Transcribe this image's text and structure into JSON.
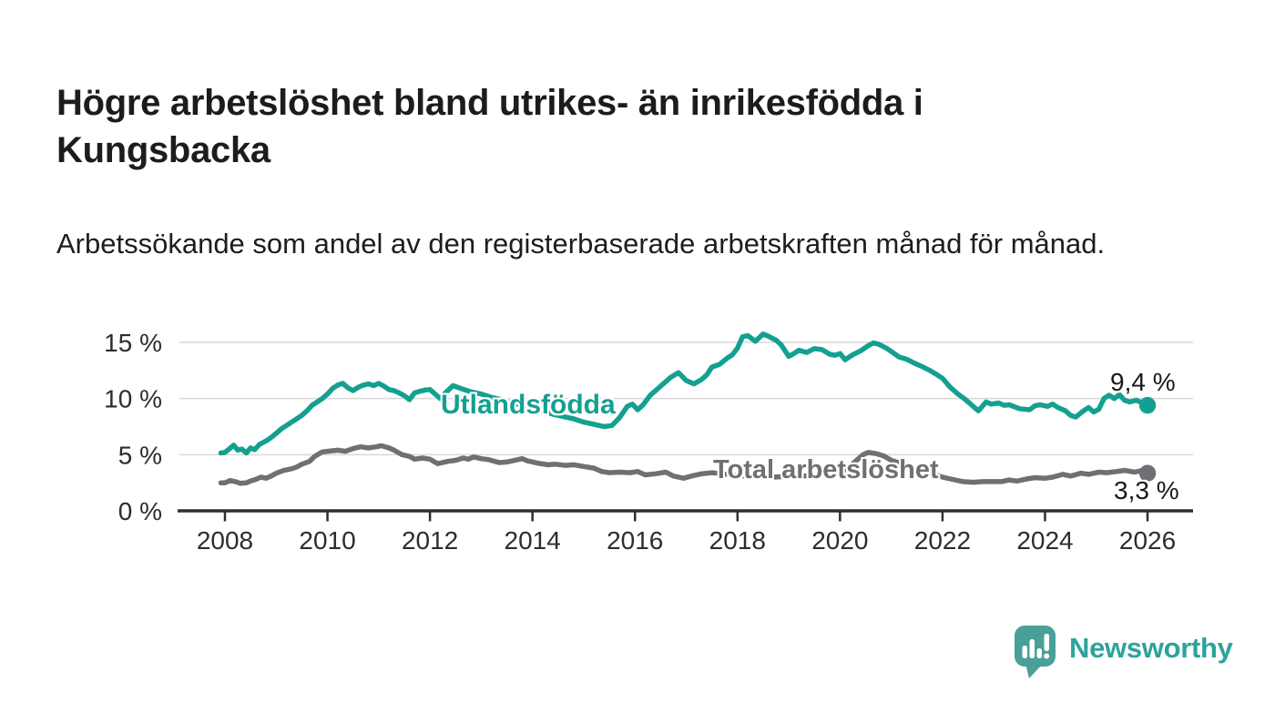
{
  "page": {
    "title": "Högre arbetslöshet bland utrikes- än inrikesfödda i Kungsbacka",
    "subtitle": "Arbetssökande som andel av den registerbaserade arbetskraften månad för månad."
  },
  "colors": {
    "accent_teal": "#14a091",
    "series_gray": "#6f6f74",
    "axis": "#2f2f2f",
    "grid": "#d8d8d8",
    "tick_text": "#2d2d2d",
    "text": "#1c1c1e",
    "brand_teal": "#2da39a",
    "logo_bubble": "#4a9f99"
  },
  "chart_data": {
    "type": "line",
    "title": "Högre arbetslöshet bland utrikes- än inrikesfödda i Kungsbacka",
    "subtitle": "Arbetssökande som andel av den registerbaserade arbetskraften månad för månad.",
    "grid": true,
    "x_axis": {
      "tick_values": [
        2008,
        2010,
        2012,
        2014,
        2016,
        2018,
        2020,
        2022,
        2024,
        2026
      ],
      "tick_labels": [
        "2008",
        "2010",
        "2012",
        "2014",
        "2016",
        "2018",
        "2020",
        "2022",
        "2024",
        "2026"
      ],
      "range": [
        2007.9,
        2026.9
      ]
    },
    "y_axis": {
      "unit": "%",
      "tick_values": [
        0,
        5,
        10,
        15
      ],
      "tick_labels": [
        "0 %",
        "5 %",
        "10 %",
        "15 %"
      ],
      "range": [
        0,
        16.3
      ]
    },
    "series": [
      {
        "name": "Utlandsfödda",
        "color": "#14a091",
        "end_label": "9,4 %",
        "end_value": 9.4,
        "points": [
          [
            2007.92,
            5.15
          ],
          [
            2008.0,
            5.2
          ],
          [
            2008.08,
            5.5
          ],
          [
            2008.17,
            5.85
          ],
          [
            2008.25,
            5.4
          ],
          [
            2008.33,
            5.5
          ],
          [
            2008.42,
            5.15
          ],
          [
            2008.5,
            5.6
          ],
          [
            2008.58,
            5.45
          ],
          [
            2008.67,
            5.9
          ],
          [
            2008.75,
            6.1
          ],
          [
            2008.83,
            6.3
          ],
          [
            2008.92,
            6.6
          ],
          [
            2009.0,
            6.9
          ],
          [
            2009.1,
            7.3
          ],
          [
            2009.2,
            7.6
          ],
          [
            2009.3,
            7.9
          ],
          [
            2009.4,
            8.2
          ],
          [
            2009.5,
            8.5
          ],
          [
            2009.6,
            8.9
          ],
          [
            2009.7,
            9.4
          ],
          [
            2009.8,
            9.7
          ],
          [
            2009.9,
            10.0
          ],
          [
            2010.0,
            10.4
          ],
          [
            2010.1,
            10.9
          ],
          [
            2010.2,
            11.2
          ],
          [
            2010.3,
            11.35
          ],
          [
            2010.4,
            10.95
          ],
          [
            2010.5,
            10.7
          ],
          [
            2010.6,
            11.0
          ],
          [
            2010.7,
            11.2
          ],
          [
            2010.8,
            11.3
          ],
          [
            2010.9,
            11.15
          ],
          [
            2011.0,
            11.35
          ],
          [
            2011.1,
            11.1
          ],
          [
            2011.2,
            10.8
          ],
          [
            2011.3,
            10.7
          ],
          [
            2011.4,
            10.5
          ],
          [
            2011.5,
            10.25
          ],
          [
            2011.6,
            9.9
          ],
          [
            2011.7,
            10.5
          ],
          [
            2011.8,
            10.65
          ],
          [
            2011.9,
            10.75
          ],
          [
            2012.0,
            10.8
          ],
          [
            2012.1,
            10.4
          ],
          [
            2012.2,
            10.0
          ],
          [
            2012.3,
            10.5
          ],
          [
            2012.45,
            11.15
          ],
          [
            2012.6,
            10.9
          ],
          [
            2012.8,
            10.6
          ],
          [
            2013.0,
            10.4
          ],
          [
            2013.2,
            10.1
          ],
          [
            2013.4,
            9.9
          ],
          [
            2013.6,
            9.6
          ],
          [
            2013.8,
            9.4
          ],
          [
            2014.0,
            9.1
          ],
          [
            2014.2,
            8.9
          ],
          [
            2014.4,
            8.6
          ],
          [
            2014.6,
            8.4
          ],
          [
            2014.8,
            8.2
          ],
          [
            2015.0,
            7.9
          ],
          [
            2015.2,
            7.7
          ],
          [
            2015.4,
            7.5
          ],
          [
            2015.55,
            7.6
          ],
          [
            2015.7,
            8.3
          ],
          [
            2015.85,
            9.3
          ],
          [
            2015.95,
            9.5
          ],
          [
            2016.05,
            9.0
          ],
          [
            2016.15,
            9.4
          ],
          [
            2016.3,
            10.3
          ],
          [
            2016.45,
            10.9
          ],
          [
            2016.6,
            11.5
          ],
          [
            2016.7,
            11.9
          ],
          [
            2016.85,
            12.3
          ],
          [
            2017.0,
            11.6
          ],
          [
            2017.15,
            11.3
          ],
          [
            2017.3,
            11.7
          ],
          [
            2017.4,
            12.1
          ],
          [
            2017.5,
            12.8
          ],
          [
            2017.65,
            13.05
          ],
          [
            2017.8,
            13.6
          ],
          [
            2017.9,
            13.9
          ],
          [
            2018.0,
            14.5
          ],
          [
            2018.1,
            15.5
          ],
          [
            2018.2,
            15.6
          ],
          [
            2018.35,
            15.1
          ],
          [
            2018.5,
            15.75
          ],
          [
            2018.6,
            15.55
          ],
          [
            2018.75,
            15.2
          ],
          [
            2018.85,
            14.8
          ],
          [
            2019.0,
            13.75
          ],
          [
            2019.1,
            14.0
          ],
          [
            2019.2,
            14.3
          ],
          [
            2019.35,
            14.1
          ],
          [
            2019.5,
            14.45
          ],
          [
            2019.65,
            14.35
          ],
          [
            2019.8,
            13.95
          ],
          [
            2019.9,
            13.85
          ],
          [
            2020.0,
            14.0
          ],
          [
            2020.1,
            13.45
          ],
          [
            2020.25,
            13.9
          ],
          [
            2020.4,
            14.25
          ],
          [
            2020.55,
            14.7
          ],
          [
            2020.65,
            14.95
          ],
          [
            2020.75,
            14.85
          ],
          [
            2020.9,
            14.5
          ],
          [
            2021.0,
            14.2
          ],
          [
            2021.15,
            13.7
          ],
          [
            2021.3,
            13.5
          ],
          [
            2021.45,
            13.15
          ],
          [
            2021.6,
            12.85
          ],
          [
            2021.75,
            12.5
          ],
          [
            2021.9,
            12.1
          ],
          [
            2022.0,
            11.8
          ],
          [
            2022.15,
            11.0
          ],
          [
            2022.3,
            10.4
          ],
          [
            2022.45,
            9.9
          ],
          [
            2022.6,
            9.3
          ],
          [
            2022.7,
            8.9
          ],
          [
            2022.85,
            9.7
          ],
          [
            2022.95,
            9.5
          ],
          [
            2023.1,
            9.6
          ],
          [
            2023.2,
            9.4
          ],
          [
            2023.3,
            9.45
          ],
          [
            2023.5,
            9.1
          ],
          [
            2023.7,
            9.0
          ],
          [
            2023.8,
            9.35
          ],
          [
            2023.9,
            9.45
          ],
          [
            2024.05,
            9.3
          ],
          [
            2024.15,
            9.5
          ],
          [
            2024.25,
            9.2
          ],
          [
            2024.4,
            8.9
          ],
          [
            2024.5,
            8.5
          ],
          [
            2024.6,
            8.35
          ],
          [
            2024.75,
            8.9
          ],
          [
            2024.85,
            9.2
          ],
          [
            2024.95,
            8.8
          ],
          [
            2025.05,
            9.05
          ],
          [
            2025.15,
            10.0
          ],
          [
            2025.25,
            10.3
          ],
          [
            2025.35,
            10.0
          ],
          [
            2025.45,
            10.35
          ],
          [
            2025.55,
            9.85
          ],
          [
            2025.65,
            9.7
          ],
          [
            2025.78,
            9.85
          ],
          [
            2025.9,
            9.6
          ],
          [
            2026.0,
            9.4
          ]
        ]
      },
      {
        "name": "Total arbetslöshet",
        "color": "#6f6f74",
        "end_label": "3,3 %",
        "end_value": 3.3,
        "points": [
          [
            2007.92,
            2.5
          ],
          [
            2008.0,
            2.5
          ],
          [
            2008.1,
            2.7
          ],
          [
            2008.2,
            2.6
          ],
          [
            2008.3,
            2.45
          ],
          [
            2008.42,
            2.5
          ],
          [
            2008.5,
            2.65
          ],
          [
            2008.6,
            2.8
          ],
          [
            2008.7,
            3.0
          ],
          [
            2008.8,
            2.9
          ],
          [
            2008.9,
            3.1
          ],
          [
            2009.0,
            3.35
          ],
          [
            2009.15,
            3.6
          ],
          [
            2009.3,
            3.75
          ],
          [
            2009.4,
            3.9
          ],
          [
            2009.5,
            4.15
          ],
          [
            2009.65,
            4.4
          ],
          [
            2009.75,
            4.85
          ],
          [
            2009.9,
            5.25
          ],
          [
            2010.0,
            5.3
          ],
          [
            2010.2,
            5.4
          ],
          [
            2010.35,
            5.3
          ],
          [
            2010.5,
            5.55
          ],
          [
            2010.65,
            5.7
          ],
          [
            2010.8,
            5.6
          ],
          [
            2010.95,
            5.7
          ],
          [
            2011.05,
            5.8
          ],
          [
            2011.2,
            5.6
          ],
          [
            2011.3,
            5.4
          ],
          [
            2011.45,
            5.0
          ],
          [
            2011.6,
            4.85
          ],
          [
            2011.7,
            4.6
          ],
          [
            2011.85,
            4.7
          ],
          [
            2012.0,
            4.6
          ],
          [
            2012.15,
            4.2
          ],
          [
            2012.35,
            4.4
          ],
          [
            2012.5,
            4.5
          ],
          [
            2012.65,
            4.7
          ],
          [
            2012.75,
            4.6
          ],
          [
            2012.85,
            4.8
          ],
          [
            2013.0,
            4.65
          ],
          [
            2013.15,
            4.55
          ],
          [
            2013.35,
            4.3
          ],
          [
            2013.5,
            4.35
          ],
          [
            2013.7,
            4.55
          ],
          [
            2013.8,
            4.65
          ],
          [
            2013.9,
            4.45
          ],
          [
            2014.1,
            4.25
          ],
          [
            2014.3,
            4.1
          ],
          [
            2014.45,
            4.15
          ],
          [
            2014.65,
            4.05
          ],
          [
            2014.8,
            4.1
          ],
          [
            2015.0,
            3.95
          ],
          [
            2015.2,
            3.8
          ],
          [
            2015.35,
            3.5
          ],
          [
            2015.5,
            3.4
          ],
          [
            2015.7,
            3.45
          ],
          [
            2015.9,
            3.4
          ],
          [
            2016.05,
            3.5
          ],
          [
            2016.2,
            3.2
          ],
          [
            2016.4,
            3.3
          ],
          [
            2016.6,
            3.45
          ],
          [
            2016.75,
            3.1
          ],
          [
            2016.95,
            2.9
          ],
          [
            2017.1,
            3.1
          ],
          [
            2017.3,
            3.3
          ],
          [
            2017.5,
            3.4
          ],
          [
            2017.7,
            3.3
          ],
          [
            2017.9,
            3.2
          ],
          [
            2018.1,
            3.1
          ],
          [
            2018.3,
            3.05
          ],
          [
            2018.5,
            3.0
          ],
          [
            2018.7,
            3.0
          ],
          [
            2018.9,
            3.05
          ],
          [
            2019.1,
            3.1
          ],
          [
            2019.3,
            3.1
          ],
          [
            2019.5,
            3.15
          ],
          [
            2019.7,
            3.2
          ],
          [
            2019.9,
            3.3
          ],
          [
            2020.0,
            3.4
          ],
          [
            2020.15,
            3.8
          ],
          [
            2020.3,
            4.4
          ],
          [
            2020.45,
            5.0
          ],
          [
            2020.55,
            5.2
          ],
          [
            2020.7,
            5.1
          ],
          [
            2020.85,
            4.9
          ],
          [
            2021.0,
            4.5
          ],
          [
            2021.2,
            4.2
          ],
          [
            2021.4,
            3.9
          ],
          [
            2021.6,
            3.6
          ],
          [
            2021.8,
            3.3
          ],
          [
            2022.0,
            3.0
          ],
          [
            2022.2,
            2.8
          ],
          [
            2022.4,
            2.6
          ],
          [
            2022.6,
            2.55
          ],
          [
            2022.8,
            2.6
          ],
          [
            2023.0,
            2.6
          ],
          [
            2023.15,
            2.6
          ],
          [
            2023.3,
            2.75
          ],
          [
            2023.45,
            2.65
          ],
          [
            2023.65,
            2.85
          ],
          [
            2023.8,
            2.95
          ],
          [
            2024.0,
            2.9
          ],
          [
            2024.15,
            3.0
          ],
          [
            2024.35,
            3.25
          ],
          [
            2024.5,
            3.1
          ],
          [
            2024.7,
            3.35
          ],
          [
            2024.85,
            3.25
          ],
          [
            2025.05,
            3.45
          ],
          [
            2025.2,
            3.4
          ],
          [
            2025.4,
            3.5
          ],
          [
            2025.55,
            3.6
          ],
          [
            2025.75,
            3.45
          ],
          [
            2025.85,
            3.55
          ],
          [
            2026.0,
            3.35
          ]
        ]
      }
    ],
    "legend_position": "inline-labels"
  },
  "footer": {
    "brand": "Newsworthy"
  }
}
